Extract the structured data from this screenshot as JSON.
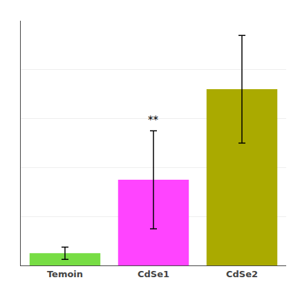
{
  "chart_data": {
    "type": "bar",
    "categories": [
      "Temoin",
      "CdSe1",
      "CdSe2"
    ],
    "values": [
      5.0,
      35.0,
      72.0
    ],
    "errors": [
      2.5,
      20.0,
      22.0
    ],
    "colors": [
      "#77dd44",
      "#ff44ff",
      "#aaaa00"
    ],
    "ylim": [
      0,
      100
    ],
    "yticks": [
      20,
      40,
      60,
      80,
      100
    ],
    "grid": true,
    "tick_labels": "x",
    "annotations": [
      {
        "category": "CdSe1",
        "text": "**"
      }
    ]
  }
}
